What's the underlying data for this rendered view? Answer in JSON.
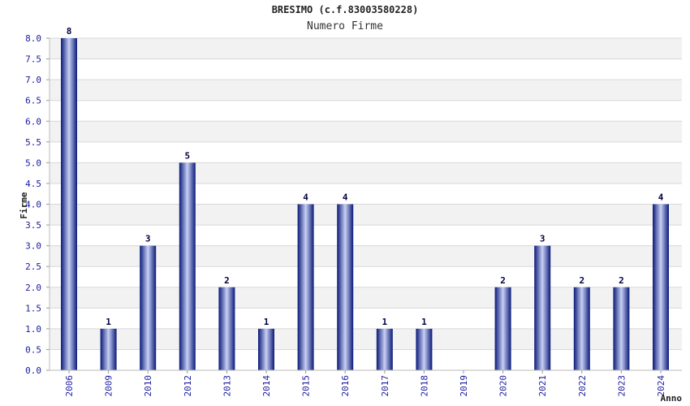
{
  "chart_data": {
    "type": "bar",
    "title": "BRESIMO (c.f.83003580228)",
    "subtitle": "Numero Firme",
    "xlabel": "Anno",
    "ylabel": "Firme",
    "categories": [
      "2006",
      "2009",
      "2010",
      "2012",
      "2013",
      "2014",
      "2015",
      "2016",
      "2017",
      "2018",
      "2019",
      "2020",
      "2021",
      "2022",
      "2023",
      "2024"
    ],
    "values": [
      8,
      1,
      3,
      5,
      2,
      1,
      4,
      4,
      1,
      1,
      0,
      2,
      3,
      2,
      2,
      4
    ],
    "data_labels": [
      "8",
      "1",
      "3",
      "5",
      "2",
      "1",
      "4",
      "4",
      "1",
      "1",
      "",
      "2",
      "3",
      "2",
      "2",
      "4"
    ],
    "ylim": [
      0,
      8
    ],
    "yticks": [
      "0.0",
      "0.5",
      "1.0",
      "1.5",
      "2.0",
      "2.5",
      "3.0",
      "3.5",
      "4.0",
      "4.5",
      "5.0",
      "5.5",
      "6.0",
      "6.5",
      "7.0",
      "7.5",
      "8.0"
    ],
    "grid": true,
    "colors": {
      "bar_dark": "#0a1a78",
      "bar_light": "#c8d0f4",
      "band": "#f2f2f2",
      "grid": "#d8d8d8",
      "tick_text": "#1a1aa0",
      "value_text": "#000040"
    }
  }
}
